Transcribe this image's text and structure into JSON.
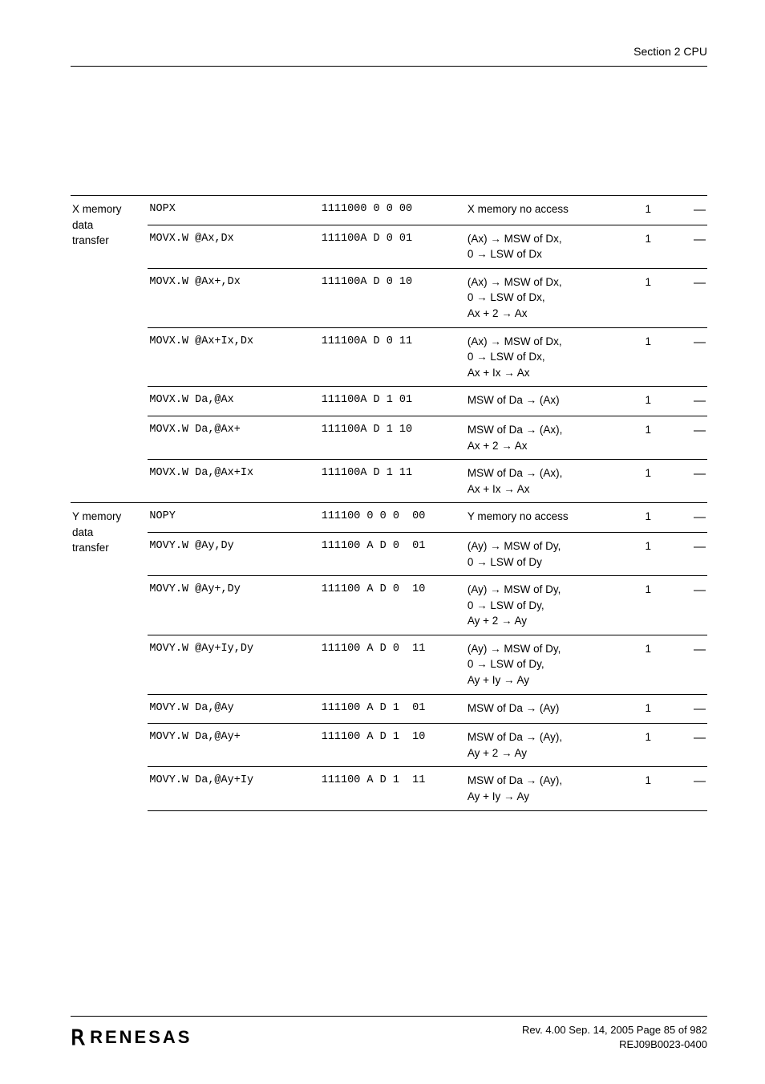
{
  "header": {
    "section": "Section 2   CPU"
  },
  "colors": {
    "text": "#000000",
    "background": "#ffffff",
    "rule": "#000000"
  },
  "table": {
    "groups": [
      {
        "label_lines": [
          "X memory",
          "data",
          "transfer"
        ],
        "rows": [
          {
            "mnemonic": "NOPX",
            "code": "1111000 0 0 00",
            "op_lines": [
              "X memory no access"
            ],
            "cycles": "1",
            "dash": "—"
          },
          {
            "mnemonic": "MOVX.W @Ax,Dx",
            "code": "111100A D 0 01",
            "op_lines": [
              "(Ax) → MSW of Dx,",
              "0 → LSW of Dx"
            ],
            "cycles": "1",
            "dash": "—"
          },
          {
            "mnemonic": "MOVX.W @Ax+,Dx",
            "code": "111100A D 0 10",
            "op_lines": [
              "(Ax) → MSW of Dx,",
              "0 → LSW of Dx,",
              "Ax + 2 → Ax"
            ],
            "cycles": "1",
            "dash": "—"
          },
          {
            "mnemonic": "MOVX.W @Ax+Ix,Dx",
            "code": "111100A D 0 11",
            "op_lines": [
              "(Ax) → MSW of Dx,",
              "0 → LSW of Dx,",
              "Ax + Ix → Ax"
            ],
            "cycles": "1",
            "dash": "—"
          },
          {
            "mnemonic": "MOVX.W Da,@Ax",
            "code": "111100A D 1 01",
            "op_lines": [
              "MSW of Da → (Ax)"
            ],
            "cycles": "1",
            "dash": "—"
          },
          {
            "mnemonic": "MOVX.W Da,@Ax+",
            "code": "111100A D 1 10",
            "op_lines": [
              "MSW of Da → (Ax),",
              "Ax + 2 → Ax"
            ],
            "cycles": "1",
            "dash": "—"
          },
          {
            "mnemonic": "MOVX.W Da,@Ax+Ix",
            "code": "111100A D 1 11",
            "op_lines": [
              "MSW of Da → (Ax),",
              "Ax + Ix → Ax"
            ],
            "cycles": "1",
            "dash": "—"
          }
        ]
      },
      {
        "label_lines": [
          "Y memory",
          "data",
          "transfer"
        ],
        "rows": [
          {
            "mnemonic": "NOPY",
            "code": "111100 0 0 0  00",
            "op_lines": [
              "Y memory no access"
            ],
            "cycles": "1",
            "dash": "—"
          },
          {
            "mnemonic": "MOVY.W @Ay,Dy",
            "code": "111100 A D 0  01",
            "op_lines": [
              "(Ay) → MSW of Dy,",
              "0 → LSW of Dy"
            ],
            "cycles": "1",
            "dash": "—"
          },
          {
            "mnemonic": "MOVY.W @Ay+,Dy",
            "code": "111100 A D 0  10",
            "op_lines": [
              "(Ay) → MSW of Dy,",
              "0 → LSW of Dy,",
              "Ay + 2 → Ay"
            ],
            "cycles": "1",
            "dash": "—"
          },
          {
            "mnemonic": "MOVY.W @Ay+Iy,Dy",
            "code": "111100 A D 0  11",
            "op_lines": [
              "(Ay) → MSW of Dy,",
              "0 → LSW of Dy,",
              "Ay + Iy → Ay"
            ],
            "cycles": "1",
            "dash": "—"
          },
          {
            "mnemonic": "MOVY.W Da,@Ay",
            "code": "111100 A D 1  01",
            "op_lines": [
              "MSW of Da → (Ay)"
            ],
            "cycles": "1",
            "dash": "—"
          },
          {
            "mnemonic": "MOVY.W Da,@Ay+",
            "code": "111100 A D 1  10",
            "op_lines": [
              "MSW of Da → (Ay),",
              "Ay + 2 → Ay"
            ],
            "cycles": "1",
            "dash": "—"
          },
          {
            "mnemonic": "MOVY.W Da,@Ay+Iy",
            "code": "111100 A D 1  11",
            "op_lines": [
              "MSW of Da → (Ay),",
              "Ay + Iy → Ay"
            ],
            "cycles": "1",
            "dash": "—"
          }
        ]
      }
    ]
  },
  "footer": {
    "logo_dot": "ᴿ",
    "logo_text": "RENESAS",
    "line1": "Rev. 4.00  Sep. 14, 2005  Page 85 of 982",
    "line2": "REJ09B0023-0400"
  }
}
